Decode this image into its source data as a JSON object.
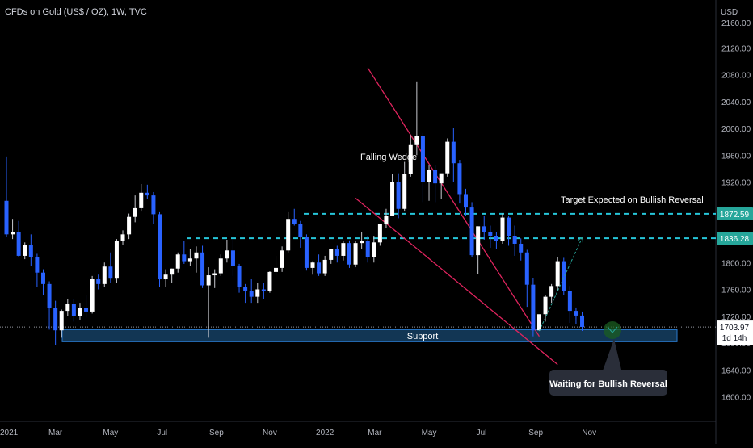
{
  "header": {
    "symbol_line": "CFDs on Gold (US$ / OZ), 1W, TVC"
  },
  "colors": {
    "background": "#000000",
    "up_body": "#ffffff",
    "down_body": "#2962ff",
    "wick": "#8a8f99",
    "wedge_line": "#e0245e",
    "dashed_level": "#26c6da",
    "support_zone": "#1e5a8c",
    "price_label_bg": "#26a69a",
    "arrow": "#26a69a"
  },
  "chart_data": {
    "type": "candlestick",
    "currency_label": "USD",
    "ylim": [
      1560,
      2160
    ],
    "y_ticks": [
      "2160.00",
      "2120.00",
      "2080.00",
      "2040.00",
      "2000.00",
      "1960.00",
      "1920.00",
      "1880.00",
      "1840.00",
      "1800.00",
      "1760.00",
      "1720.00",
      "1680.00",
      "1640.00",
      "1600.00"
    ],
    "x_ticks": [
      "2021",
      "Mar",
      "May",
      "Jul",
      "Sep",
      "Nov",
      "2022",
      "Mar",
      "May",
      "Jul",
      "Sep",
      "Nov"
    ],
    "candles": [
      [
        1892,
        1958,
        1838,
        1842
      ],
      [
        1842,
        1865,
        1835,
        1845
      ],
      [
        1845,
        1862,
        1808,
        1810
      ],
      [
        1810,
        1830,
        1805,
        1826
      ],
      [
        1826,
        1842,
        1795,
        1808
      ],
      [
        1808,
        1813,
        1764,
        1785
      ],
      [
        1785,
        1790,
        1752,
        1768
      ],
      [
        1768,
        1772,
        1700,
        1732
      ],
      [
        1732,
        1743,
        1677,
        1699
      ],
      [
        1699,
        1730,
        1688,
        1728
      ],
      [
        1728,
        1745,
        1720,
        1738
      ],
      [
        1738,
        1746,
        1712,
        1720
      ],
      [
        1720,
        1740,
        1714,
        1732
      ],
      [
        1732,
        1752,
        1718,
        1727
      ],
      [
        1727,
        1780,
        1724,
        1775
      ],
      [
        1775,
        1782,
        1760,
        1768
      ],
      [
        1768,
        1800,
        1764,
        1794
      ],
      [
        1794,
        1815,
        1770,
        1776
      ],
      [
        1776,
        1835,
        1770,
        1832
      ],
      [
        1832,
        1848,
        1826,
        1842
      ],
      [
        1842,
        1873,
        1835,
        1868
      ],
      [
        1868,
        1900,
        1860,
        1881
      ],
      [
        1881,
        1917,
        1876,
        1904
      ],
      [
        1904,
        1916,
        1895,
        1900
      ],
      [
        1900,
        1905,
        1858,
        1872
      ],
      [
        1872,
        1875,
        1763,
        1775
      ],
      [
        1775,
        1790,
        1764,
        1782
      ],
      [
        1782,
        1791,
        1770,
        1791
      ],
      [
        1791,
        1815,
        1785,
        1812
      ],
      [
        1812,
        1832,
        1798,
        1802
      ],
      [
        1802,
        1820,
        1795,
        1806
      ],
      [
        1806,
        1824,
        1785,
        1815
      ],
      [
        1815,
        1825,
        1762,
        1766
      ],
      [
        1766,
        1793,
        1688,
        1781
      ],
      [
        1781,
        1790,
        1762,
        1784
      ],
      [
        1784,
        1812,
        1780,
        1806
      ],
      [
        1806,
        1834,
        1800,
        1818
      ],
      [
        1818,
        1835,
        1780,
        1795
      ],
      [
        1795,
        1798,
        1755,
        1763
      ],
      [
        1763,
        1768,
        1740,
        1758
      ],
      [
        1758,
        1775,
        1740,
        1749
      ],
      [
        1749,
        1770,
        1740,
        1760
      ],
      [
        1760,
        1770,
        1746,
        1758
      ],
      [
        1758,
        1787,
        1755,
        1786
      ],
      [
        1786,
        1810,
        1780,
        1792
      ],
      [
        1792,
        1824,
        1786,
        1818
      ],
      [
        1818,
        1875,
        1815,
        1865
      ],
      [
        1865,
        1880,
        1855,
        1858
      ],
      [
        1858,
        1862,
        1822,
        1838
      ],
      [
        1838,
        1842,
        1788,
        1792
      ],
      [
        1792,
        1802,
        1782,
        1800
      ],
      [
        1800,
        1812,
        1780,
        1784
      ],
      [
        1784,
        1810,
        1780,
        1804
      ],
      [
        1804,
        1817,
        1798,
        1820
      ],
      [
        1820,
        1825,
        1800,
        1810
      ],
      [
        1810,
        1832,
        1803,
        1829
      ],
      [
        1829,
        1833,
        1792,
        1797
      ],
      [
        1797,
        1832,
        1793,
        1829
      ],
      [
        1829,
        1845,
        1820,
        1832
      ],
      [
        1832,
        1840,
        1800,
        1808
      ],
      [
        1808,
        1840,
        1800,
        1830
      ],
      [
        1830,
        1855,
        1825,
        1858
      ],
      [
        1858,
        1880,
        1852,
        1870
      ],
      [
        1870,
        1932,
        1869,
        1920
      ],
      [
        1920,
        1933,
        1866,
        1880
      ],
      [
        1880,
        1950,
        1876,
        1932
      ],
      [
        1932,
        1990,
        1928,
        1975
      ],
      [
        1975,
        2070,
        1960,
        1988
      ],
      [
        1988,
        1993,
        1890,
        1920
      ],
      [
        1920,
        1945,
        1892,
        1938
      ],
      [
        1938,
        1945,
        1890,
        1918
      ],
      [
        1918,
        1930,
        1895,
        1933
      ],
      [
        1933,
        1985,
        1928,
        1980
      ],
      [
        1980,
        2000,
        1920,
        1948
      ],
      [
        1948,
        1953,
        1888,
        1902
      ],
      [
        1902,
        1910,
        1870,
        1882
      ],
      [
        1882,
        1890,
        1808,
        1811
      ],
      [
        1811,
        1854,
        1783,
        1854
      ],
      [
        1854,
        1870,
        1834,
        1845
      ],
      [
        1845,
        1855,
        1822,
        1840
      ],
      [
        1840,
        1845,
        1820,
        1832
      ],
      [
        1832,
        1873,
        1828,
        1867
      ],
      [
        1867,
        1870,
        1825,
        1840
      ],
      [
        1840,
        1855,
        1810,
        1828
      ],
      [
        1828,
        1836,
        1803,
        1815
      ],
      [
        1815,
        1819,
        1734,
        1767
      ],
      [
        1767,
        1777,
        1690,
        1699
      ],
      [
        1699,
        1722,
        1698,
        1723
      ],
      [
        1723,
        1752,
        1712,
        1749
      ],
      [
        1749,
        1768,
        1740,
        1765
      ],
      [
        1765,
        1808,
        1758,
        1802
      ],
      [
        1802,
        1807,
        1751,
        1758
      ],
      [
        1758,
        1765,
        1710,
        1728
      ],
      [
        1728,
        1733,
        1708,
        1721
      ],
      [
        1721,
        1727,
        1698,
        1704
      ]
    ],
    "annotations": [
      {
        "name": "falling-wedge",
        "text": "Falling Wedge"
      },
      {
        "name": "target",
        "text": "Target Expected on Bullish Reversal"
      },
      {
        "name": "support",
        "text": "Support"
      },
      {
        "name": "waiting",
        "text": "Waiting for Bullish Reversal"
      }
    ],
    "levels": [
      {
        "name": "upper",
        "value": 1872.59,
        "label": "1872.59"
      },
      {
        "name": "lower",
        "value": 1836.28,
        "label": "1836.28"
      }
    ],
    "support_zone": {
      "from": 1682,
      "to": 1700
    },
    "current_price": {
      "value": 1703.97,
      "label": "1703.97",
      "countdown": "1d 14h"
    },
    "wedge_upper_line": {
      "from": [
        "2022-02-21",
        2090
      ],
      "to": [
        "2022-09-05",
        1690
      ]
    },
    "wedge_lower_line": {
      "from": [
        "2022-02-07",
        1896
      ],
      "to": [
        "2022-09-26",
        1648
      ]
    },
    "target_arrow": {
      "from": [
        "2022-09-05",
        1698
      ],
      "to": [
        "2022-10-17",
        1838
      ]
    }
  }
}
